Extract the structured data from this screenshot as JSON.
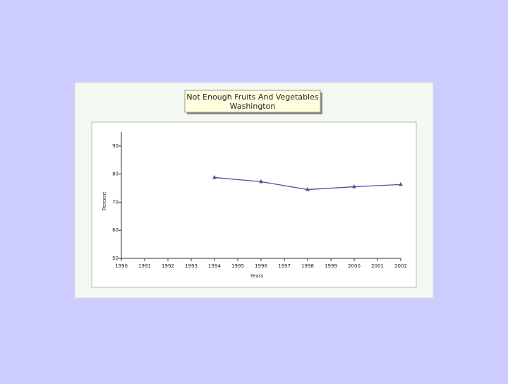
{
  "chart_data": {
    "type": "line",
    "title": "Not Enough Fruits And Vegetables",
    "subtitle": "Washington",
    "x_label": "Years",
    "y_label": "Percent",
    "x": [
      1994,
      1996,
      1998,
      2000,
      2002
    ],
    "values": [
      78.8,
      77.3,
      74.5,
      75.5,
      76.3
    ],
    "color": "#5a4a9a",
    "xlim": [
      1990,
      2002
    ],
    "xticks": [
      1990,
      1991,
      1992,
      1993,
      1994,
      1995,
      1996,
      1997,
      1998,
      1999,
      2000,
      2001,
      2002
    ],
    "ylim": [
      50,
      95
    ],
    "yticks": [
      50,
      60,
      70,
      80,
      90
    ]
  }
}
